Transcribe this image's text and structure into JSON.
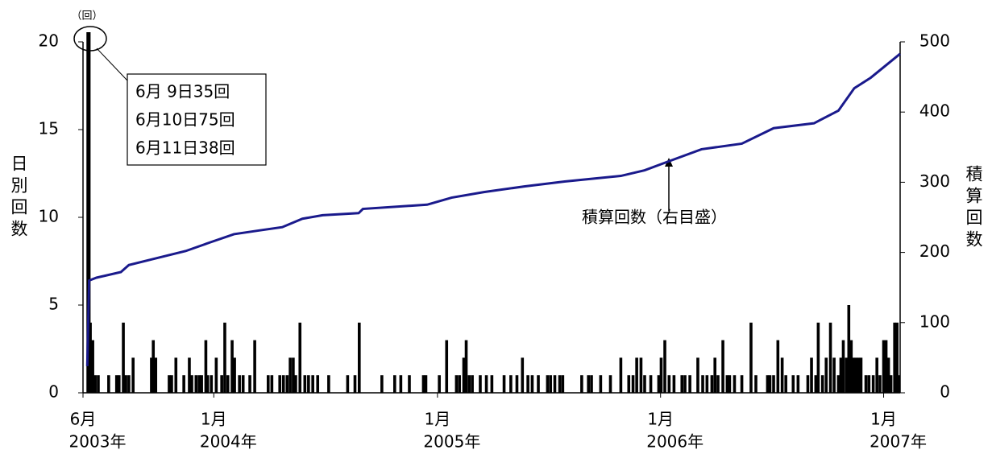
{
  "chart_data": {
    "type": "combo",
    "yunit": "（回）",
    "ylabel": "日別回数",
    "y2label": "積算回数",
    "callout": [
      "6月  9日35回",
      "6月10日75回",
      "6月11日38回"
    ],
    "line_annotation": "積算回数（右目盛）",
    "xlim": [
      0,
      1337
    ],
    "xticks": [
      {
        "value": 0,
        "label": [
          "6月",
          "2003年"
        ]
      },
      {
        "value": 214,
        "label": [
          "1月",
          "2004年"
        ]
      },
      {
        "value": 580,
        "label": [
          "1月",
          "2005年"
        ]
      },
      {
        "value": 945,
        "label": [
          "1月",
          "2006年"
        ]
      },
      {
        "value": 1310,
        "label": [
          "1月",
          "2007年"
        ]
      }
    ],
    "ylim": [
      0,
      20
    ],
    "yticks": [
      0,
      5,
      10,
      15,
      20
    ],
    "y2lim": [
      0,
      500
    ],
    "y2ticks": [
      0,
      100,
      200,
      300,
      400,
      500
    ],
    "bars": {
      "color": "#000000",
      "x": [
        8,
        9,
        10,
        12,
        16,
        20,
        25,
        42,
        55,
        59,
        66,
        70,
        75,
        82,
        112,
        115,
        119,
        141,
        145,
        152,
        165,
        174,
        178,
        185,
        190,
        194,
        201,
        204,
        210,
        218,
        227,
        232,
        237,
        244,
        248,
        256,
        262,
        273,
        281,
        303,
        309,
        322,
        328,
        334,
        339,
        344,
        348,
        355,
        363,
        369,
        376,
        384,
        402,
        433,
        445,
        452,
        489,
        510,
        520,
        534,
        557,
        561,
        583,
        595,
        611,
        616,
        623,
        627,
        632,
        637,
        650,
        660,
        669,
        689,
        700,
        710,
        719,
        728,
        735,
        745,
        760,
        765,
        772,
        780,
        785,
        816,
        827,
        832,
        847,
        863,
        880,
        893,
        900,
        906,
        913,
        919,
        929,
        942,
        946,
        952,
        959,
        967,
        980,
        985,
        993,
        1006,
        1014,
        1021,
        1029,
        1034,
        1039,
        1047,
        1054,
        1058,
        1066,
        1078,
        1093,
        1101,
        1120,
        1124,
        1130,
        1137,
        1144,
        1150,
        1162,
        1170,
        1186,
        1192,
        1199,
        1203,
        1210,
        1216,
        1223,
        1229,
        1236,
        1240,
        1244,
        1249,
        1253,
        1257,
        1261,
        1265,
        1269,
        1273,
        1281,
        1286,
        1293,
        1299,
        1304,
        1310,
        1314,
        1318,
        1322,
        1328,
        1332,
        1336
      ],
      "values": [
        35,
        75,
        38,
        4,
        3,
        1,
        1,
        1,
        1,
        1,
        4,
        1,
        1,
        2,
        2,
        3,
        2,
        1,
        1,
        2,
        1,
        2,
        1,
        1,
        1,
        1,
        3,
        1,
        1,
        2,
        1,
        4,
        1,
        3,
        2,
        1,
        1,
        1,
        3,
        1,
        1,
        1,
        1,
        1,
        2,
        2,
        1,
        4,
        1,
        1,
        1,
        1,
        1,
        1,
        1,
        4,
        1,
        1,
        1,
        1,
        1,
        1,
        1,
        3,
        1,
        1,
        2,
        3,
        1,
        1,
        1,
        1,
        1,
        1,
        1,
        1,
        2,
        1,
        1,
        1,
        1,
        1,
        1,
        1,
        1,
        1,
        1,
        1,
        1,
        1,
        2,
        1,
        1,
        2,
        2,
        1,
        1,
        1,
        2,
        3,
        1,
        1,
        1,
        1,
        1,
        2,
        1,
        1,
        1,
        2,
        1,
        3,
        1,
        1,
        1,
        1,
        4,
        1,
        1,
        1,
        1,
        3,
        2,
        1,
        1,
        1,
        1,
        2,
        1,
        4,
        1,
        2,
        4,
        2,
        1,
        2,
        3,
        2,
        5,
        3,
        2,
        2,
        2,
        2,
        1,
        1,
        1,
        2,
        1,
        3,
        3,
        2,
        1,
        4,
        4,
        1
      ]
    },
    "line": {
      "color": "#1a1a8c",
      "axis": "y2",
      "x": [
        7,
        10,
        22,
        62,
        75,
        112,
        168,
        207,
        247,
        286,
        326,
        359,
        392,
        451,
        458,
        563,
        603,
        656,
        722,
        788,
        880,
        919,
        959,
        1012,
        1078,
        1130,
        1196,
        1236,
        1262,
        1289,
        1337
      ],
      "values": [
        38,
        160,
        164,
        172,
        182,
        190,
        202,
        214,
        226,
        231,
        236,
        248,
        253,
        256,
        262,
        268,
        278,
        286,
        294,
        301,
        309,
        317,
        330,
        347,
        355,
        377,
        384,
        402,
        434,
        449,
        483
      ]
    }
  }
}
